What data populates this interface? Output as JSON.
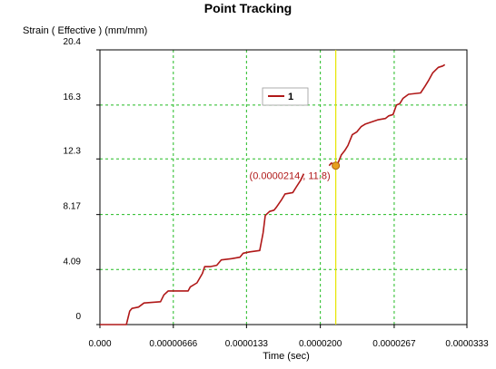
{
  "chart_data": {
    "type": "line",
    "title": "Point Tracking",
    "ylabel": "Strain ( Effective )  (mm/mm)",
    "xlabel": "Time (sec)",
    "x_ticks": [
      0.0,
      6.66e-06,
      1.33e-05,
      2e-05,
      2.67e-05,
      3.33e-05
    ],
    "x_tick_labels": [
      "0.000",
      "0.00000666",
      "0.0000133",
      "0.0000200",
      "0.0000267",
      "0.0000333"
    ],
    "y_ticks": [
      0,
      4.09,
      8.17,
      12.3,
      16.3,
      20.4
    ],
    "y_tick_labels": [
      "0",
      "4.09",
      "8.17",
      "12.3",
      "16.3",
      "20.4"
    ],
    "xlim": [
      0.0,
      3.33e-05
    ],
    "ylim": [
      0,
      20.4
    ],
    "grid": true,
    "legend_position": "top-center",
    "series": [
      {
        "name": "1",
        "color": "#b01818",
        "points": [
          [
            0.0,
            0.0
          ],
          [
            2.4e-06,
            0.0
          ],
          [
            2.7e-06,
            1.0
          ],
          [
            2.9e-06,
            1.2
          ],
          [
            3.5e-06,
            1.3
          ],
          [
            4e-06,
            1.6
          ],
          [
            5.5e-06,
            1.7
          ],
          [
            5.8e-06,
            2.2
          ],
          [
            6.2e-06,
            2.5
          ],
          [
            8e-06,
            2.5
          ],
          [
            8.2e-06,
            2.8
          ],
          [
            8.8e-06,
            3.1
          ],
          [
            9.3e-06,
            3.8
          ],
          [
            9.5e-06,
            4.3
          ],
          [
            1e-05,
            4.3
          ],
          [
            1.06e-05,
            4.4
          ],
          [
            1.1e-05,
            4.8
          ],
          [
            1.2e-05,
            4.9
          ],
          [
            1.27e-05,
            5.0
          ],
          [
            1.3e-05,
            5.3
          ],
          [
            1.36e-05,
            5.4
          ],
          [
            1.45e-05,
            5.5
          ],
          [
            1.48e-05,
            6.8
          ],
          [
            1.5e-05,
            8.1
          ],
          [
            1.54e-05,
            8.4
          ],
          [
            1.58e-05,
            8.5
          ],
          [
            1.6e-05,
            8.7
          ],
          [
            1.65e-05,
            9.3
          ],
          [
            1.68e-05,
            9.7
          ],
          [
            1.75e-05,
            9.8
          ],
          [
            1.78e-05,
            10.2
          ],
          [
            1.82e-05,
            10.7
          ],
          [
            1.85e-05,
            11.2
          ],
          [
            1.85e-05,
            null
          ],
          [
            2.08e-05,
            11.8
          ],
          [
            2.1e-05,
            12.0
          ],
          [
            2.14e-05,
            11.8
          ],
          [
            2.16e-05,
            12.0
          ],
          [
            2.19e-05,
            12.6
          ],
          [
            2.22e-05,
            12.9
          ],
          [
            2.25e-05,
            13.3
          ],
          [
            2.29e-05,
            14.1
          ],
          [
            2.33e-05,
            14.3
          ],
          [
            2.37e-05,
            14.7
          ],
          [
            2.41e-05,
            14.9
          ],
          [
            2.52e-05,
            15.2
          ],
          [
            2.59e-05,
            15.3
          ],
          [
            2.62e-05,
            15.5
          ],
          [
            2.66e-05,
            15.6
          ],
          [
            2.69e-05,
            16.3
          ],
          [
            2.72e-05,
            16.4
          ],
          [
            2.75e-05,
            16.8
          ],
          [
            2.8e-05,
            17.1
          ],
          [
            2.91e-05,
            17.2
          ],
          [
            2.95e-05,
            17.7
          ],
          [
            2.98e-05,
            18.1
          ],
          [
            3.02e-05,
            18.7
          ],
          [
            3.07e-05,
            19.1
          ],
          [
            3.11e-05,
            19.2
          ],
          [
            3.13e-05,
            19.3
          ]
        ]
      }
    ],
    "cursor_x": 2.14e-05,
    "marker_point": [
      2.14e-05,
      11.8
    ],
    "annotation": {
      "text": "(0.0000214 , 11.8)",
      "color": "#b01818"
    },
    "colors": {
      "grid": "#22bb22",
      "cursor": "#e6e600",
      "marker": "#e6a020",
      "axis": "#000000"
    }
  }
}
